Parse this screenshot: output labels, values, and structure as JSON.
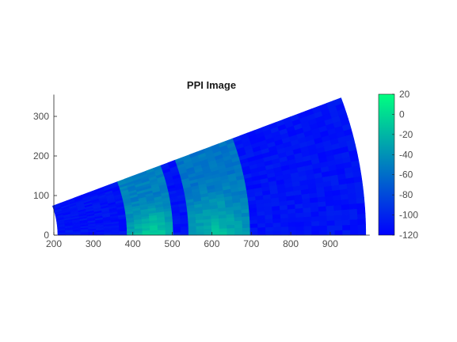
{
  "chart_data": {
    "type": "heatmap",
    "title": "PPI Image",
    "xlabel": "",
    "ylabel": "",
    "xlim": [
      200,
      1000
    ],
    "ylim": [
      0,
      355
    ],
    "x_ticks": [
      "200",
      "300",
      "400",
      "500",
      "600",
      "700",
      "800",
      "900"
    ],
    "y_ticks": [
      "0",
      "100",
      "200",
      "300"
    ],
    "sector": {
      "range_min": 210,
      "range_max": 990,
      "azimuth_min_deg": 0,
      "azimuth_max_deg": 20.5
    },
    "colorbar": {
      "min": -120,
      "max": 20,
      "ticks": [
        "20",
        "0",
        "-20",
        "-40",
        "-60",
        "-80",
        "-100",
        "-120"
      ],
      "colors": [
        "#0000ff",
        "#00ff80"
      ]
    },
    "background_level": -110,
    "bands": [
      {
        "range_start": 390,
        "range_end": 510,
        "level": -50,
        "peak_level": 0
      },
      {
        "range_start": 545,
        "range_end": 690,
        "level": -55,
        "peak_level": -10
      }
    ]
  }
}
